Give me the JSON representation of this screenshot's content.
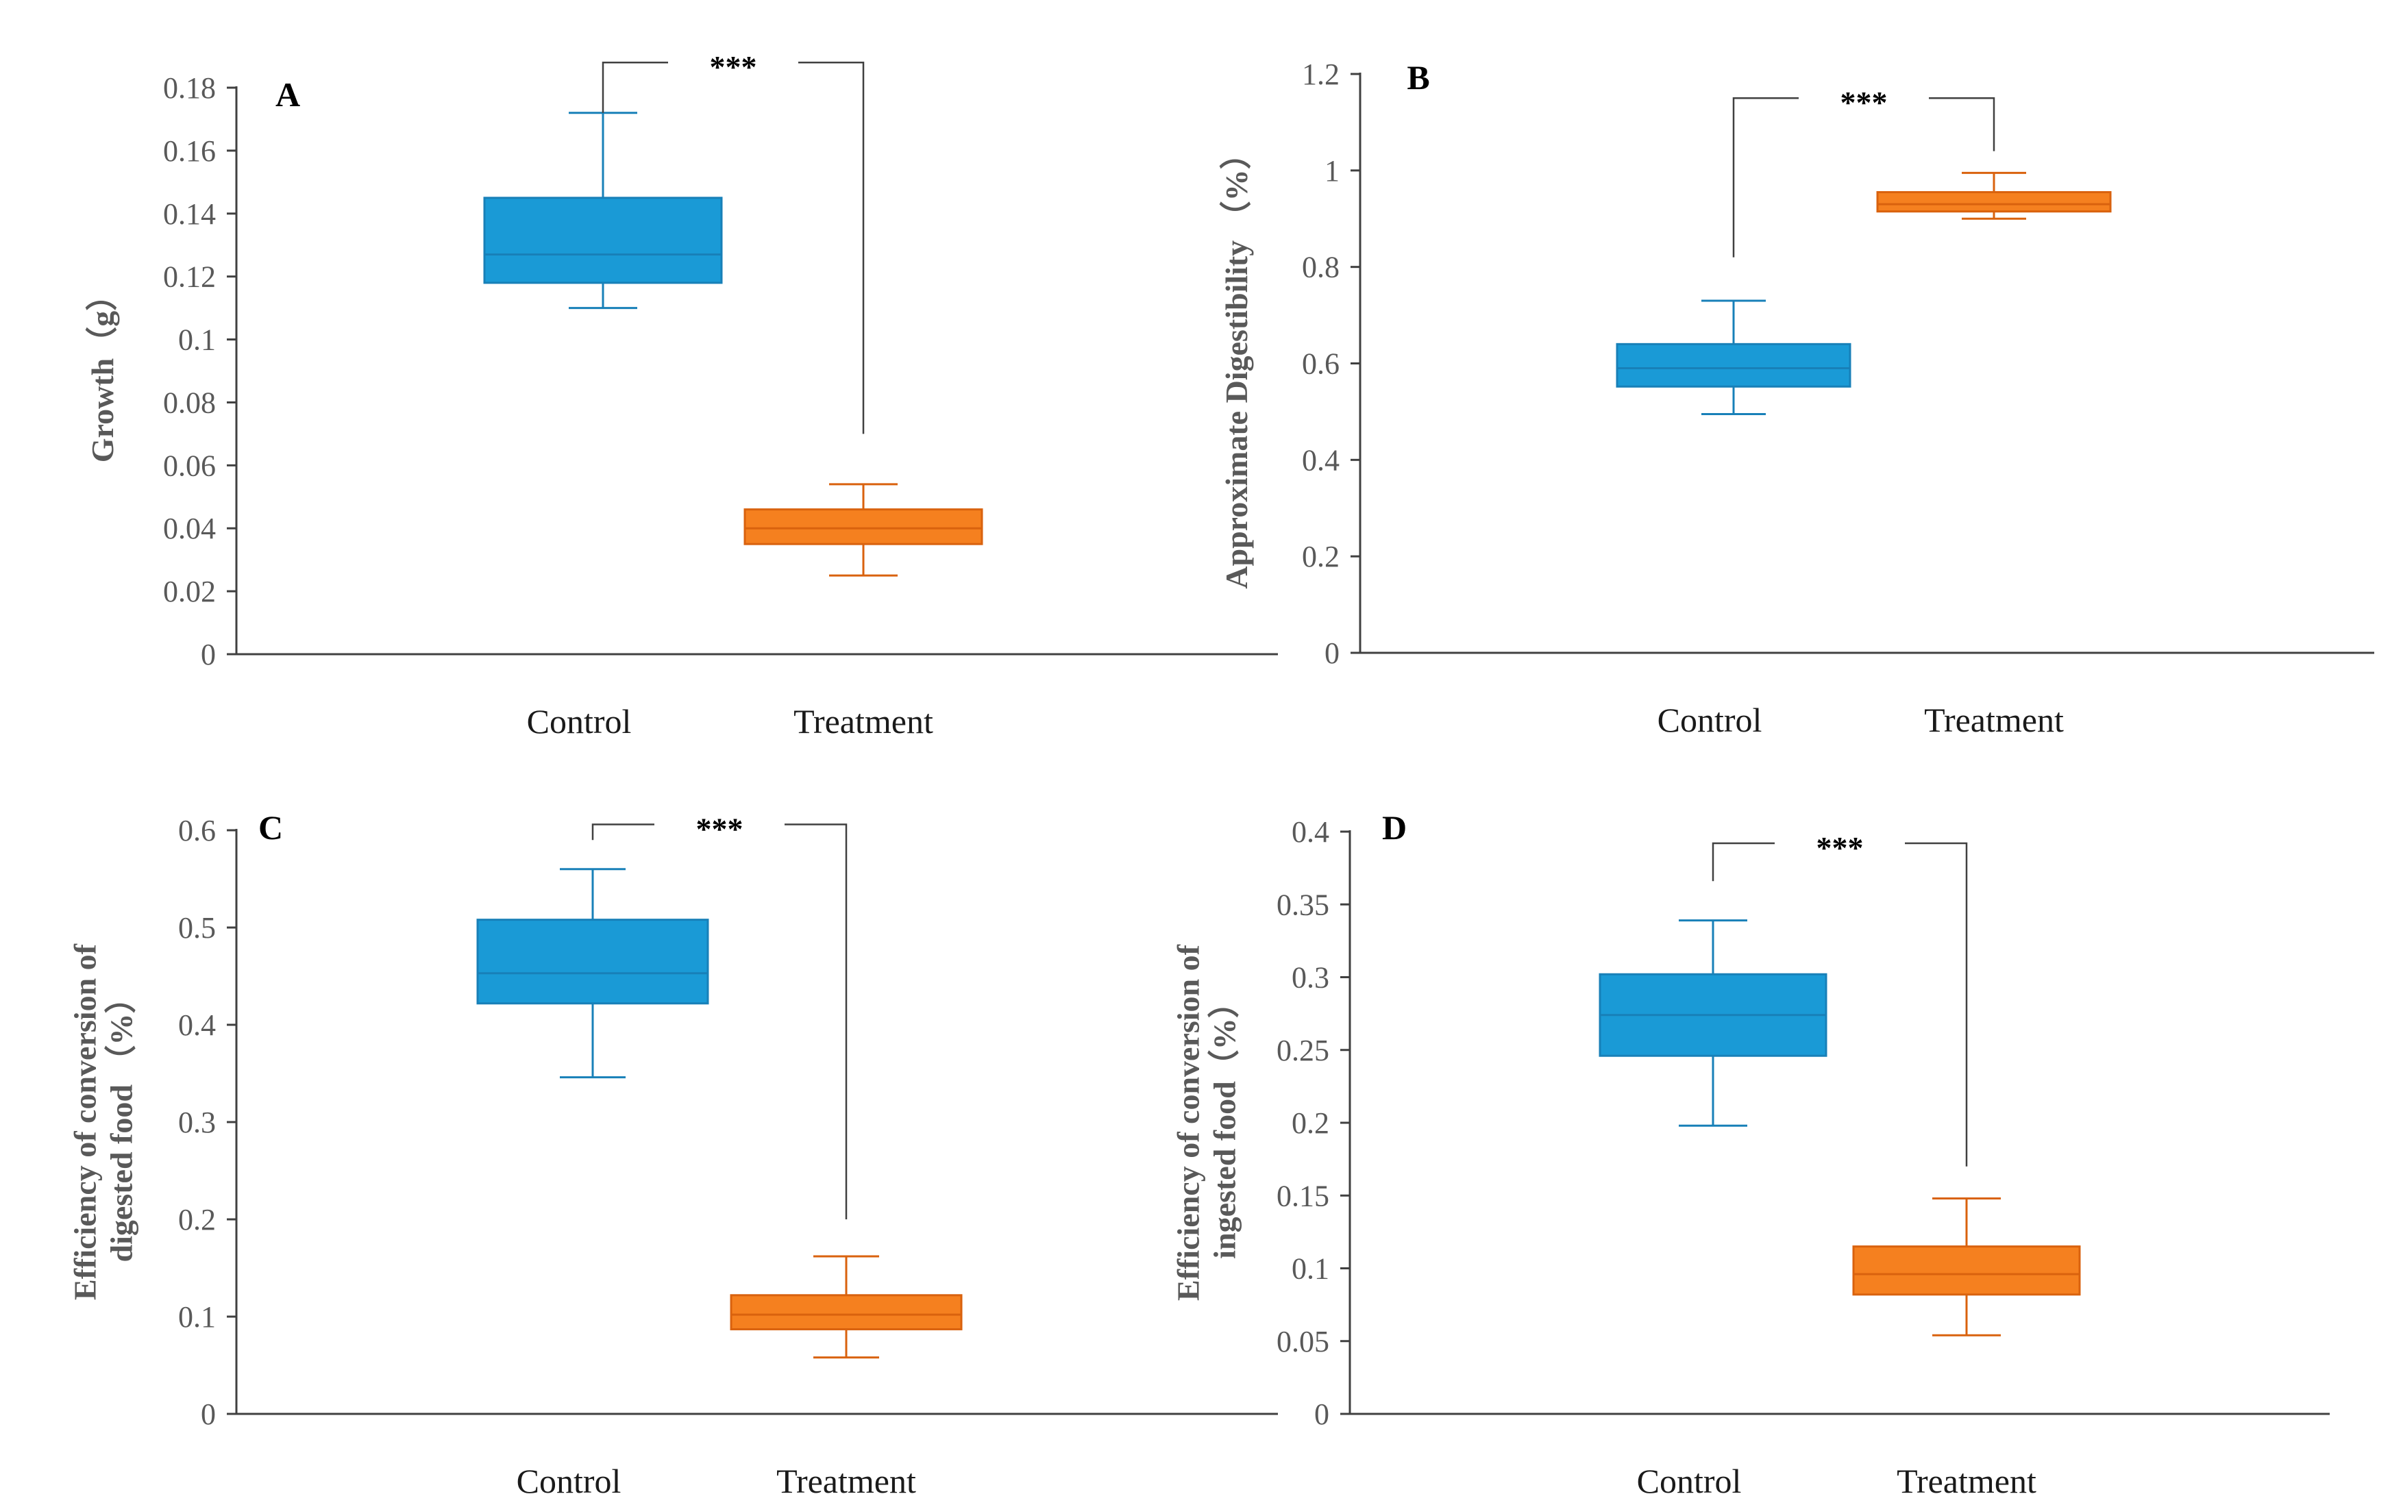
{
  "colors": {
    "control_fill": "#1a9ad6",
    "control_edge": "#1880b8",
    "treatment_fill": "#f5801f",
    "treatment_edge": "#d9620e",
    "axis": "#404040",
    "tick_text": "#595959",
    "bracket": "#404040"
  },
  "chart_data": [
    {
      "type": "box",
      "panel": "A",
      "ylabel": "Growth（g）",
      "ylim": [
        0,
        0.18
      ],
      "yticks": [
        "0",
        "0.02",
        "0.04",
        "0.06",
        "0.08",
        "0.1",
        "0.12",
        "0.14",
        "0.16",
        "0.18"
      ],
      "categories": [
        "Control",
        "Treatment"
      ],
      "boxes": [
        {
          "name": "Control",
          "min": 0.11,
          "q1": 0.118,
          "median": 0.127,
          "q3": 0.145,
          "max": 0.172
        },
        {
          "name": "Treatment",
          "min": 0.025,
          "q1": 0.035,
          "median": 0.04,
          "q3": 0.046,
          "max": 0.054
        }
      ],
      "significance": {
        "label": "***",
        "left_y": 0.172,
        "right_y": 0.07,
        "top_y": 0.188
      }
    },
    {
      "type": "box",
      "panel": "B",
      "ylabel": "Approximate Digestibility （%）",
      "ylim": [
        0,
        1.2
      ],
      "yticks": [
        "0",
        "0.2",
        "0.4",
        "0.6",
        "0.8",
        "1",
        "1.2"
      ],
      "categories": [
        "Control",
        "Treatment"
      ],
      "boxes": [
        {
          "name": "Control",
          "min": 0.495,
          "q1": 0.552,
          "median": 0.59,
          "q3": 0.64,
          "max": 0.73
        },
        {
          "name": "Treatment",
          "min": 0.9,
          "q1": 0.915,
          "median": 0.93,
          "q3": 0.955,
          "max": 0.995
        }
      ],
      "significance": {
        "label": "***",
        "left_y": 0.82,
        "right_y": 1.04,
        "top_y": 1.15
      }
    },
    {
      "type": "box",
      "panel": "C",
      "ylabel": [
        "Efficiency of conversion of",
        "digested food （%）"
      ],
      "ylim": [
        0,
        0.6
      ],
      "yticks": [
        "0",
        "0.1",
        "0.2",
        "0.3",
        "0.4",
        "0.5",
        "0.6"
      ],
      "categories": [
        "Control",
        "Treatment"
      ],
      "boxes": [
        {
          "name": "Control",
          "min": 0.346,
          "q1": 0.422,
          "median": 0.453,
          "q3": 0.508,
          "max": 0.56
        },
        {
          "name": "Treatment",
          "min": 0.058,
          "q1": 0.087,
          "median": 0.102,
          "q3": 0.122,
          "max": 0.162
        }
      ],
      "significance": {
        "label": "***",
        "left_y": 0.59,
        "right_y": 0.2,
        "top_y": 0.606
      }
    },
    {
      "type": "box",
      "panel": "D",
      "ylabel": [
        "Efficiency of conversion of",
        "ingested food（%）"
      ],
      "ylim": [
        0,
        0.4
      ],
      "yticks": [
        "0",
        "0.05",
        "0.1",
        "0.15",
        "0.2",
        "0.25",
        "0.3",
        "0.35",
        "0.4"
      ],
      "categories": [
        "Control",
        "Treatment"
      ],
      "boxes": [
        {
          "name": "Control",
          "min": 0.198,
          "q1": 0.246,
          "median": 0.274,
          "q3": 0.302,
          "max": 0.339
        },
        {
          "name": "Treatment",
          "min": 0.054,
          "q1": 0.082,
          "median": 0.096,
          "q3": 0.115,
          "max": 0.148
        }
      ],
      "significance": {
        "label": "***",
        "left_y": 0.366,
        "right_y": 0.17,
        "top_y": 0.392
      }
    }
  ]
}
